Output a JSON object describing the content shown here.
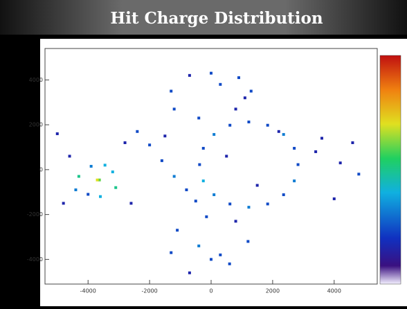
{
  "chart_data": {
    "type": "scatter",
    "title": "Hit Charge Distribution",
    "x": [
      2825,
      2703,
      2356,
      1838,
      1225,
      612,
      94,
      -253,
      -375,
      -253,
      94,
      612,
      1225,
      1838,
      2356,
      2703,
      -3630,
      -3200,
      -3100,
      -3450,
      -3900,
      -4300,
      -4400,
      -4000,
      -3600,
      -3700,
      0,
      900,
      1300,
      800,
      -400,
      -1200,
      -1300,
      -700,
      300,
      1100,
      -150,
      800,
      1200,
      600,
      -700,
      -1300,
      -1100,
      -400,
      300,
      0,
      -2400,
      -2000,
      -1600,
      -1200,
      -800,
      -500,
      -5000,
      -4600,
      -2800,
      -2600,
      3600,
      4200,
      4800,
      4000,
      3400,
      -1500,
      500,
      1500,
      2200,
      -4800,
      4600
    ],
    "y": [
      225,
      952,
      1568,
      1980,
      2125,
      1980,
      1568,
      952,
      225,
      -502,
      -1118,
      -1530,
      -1675,
      -1530,
      -1118,
      -502,
      -460,
      -100,
      -800,
      200,
      150,
      -300,
      -900,
      -1100,
      -1200,
      -460,
      4300,
      4100,
      3500,
      2700,
      2300,
      2700,
      3500,
      4200,
      3800,
      3200,
      -2100,
      -2300,
      -3200,
      -4200,
      -4600,
      -3700,
      -2700,
      -3400,
      -3800,
      -4000,
      1700,
      1100,
      400,
      -300,
      -900,
      -1400,
      1600,
      600,
      1200,
      -1500,
      1400,
      300,
      -200,
      -1300,
      800,
      1500,
      600,
      -700,
      1700,
      -1500,
      1200
    ],
    "z": [
      2,
      2,
      3,
      2,
      2,
      2,
      3,
      2,
      2,
      4,
      3,
      2,
      3,
      2,
      2,
      3,
      6,
      4,
      5,
      4,
      3,
      5,
      3,
      2,
      4,
      7,
      2,
      2,
      2,
      1,
      2,
      2,
      2,
      1,
      2,
      1,
      2,
      1,
      2,
      2,
      1,
      2,
      2,
      3,
      2,
      2,
      2,
      2,
      2,
      3,
      2,
      2,
      1,
      1,
      1,
      1,
      1,
      1,
      2,
      1,
      1,
      1,
      1,
      1,
      1,
      1,
      1
    ],
    "xlim": [
      -5400,
      5400
    ],
    "ylim": [
      -5100,
      5400
    ],
    "zlim": [
      0,
      10
    ],
    "xticks": [
      -4000,
      -2000,
      0,
      2000,
      4000
    ],
    "yticks": [
      -4000,
      -2000,
      0,
      2000,
      4000
    ]
  }
}
